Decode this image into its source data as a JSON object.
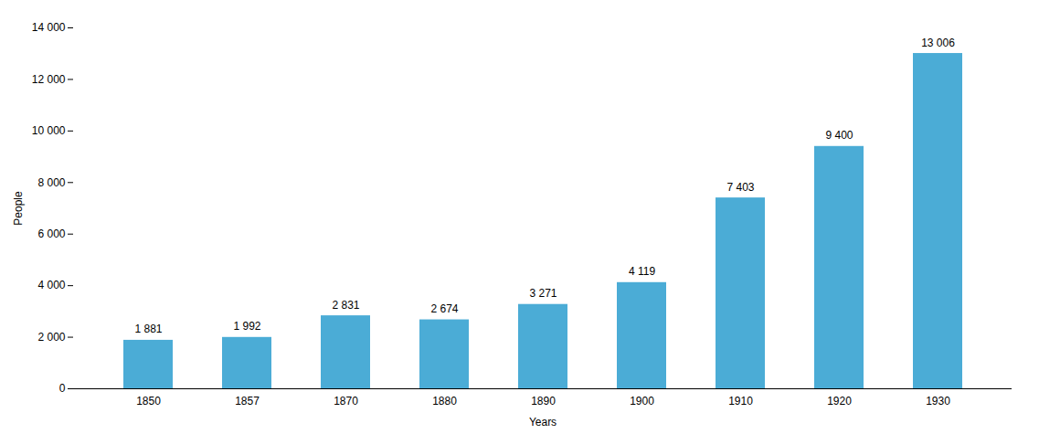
{
  "chart_data": {
    "type": "bar",
    "categories": [
      "1850",
      "1857",
      "1870",
      "1880",
      "1890",
      "1900",
      "1910",
      "1920",
      "1930"
    ],
    "values": [
      1881,
      1992,
      2831,
      2674,
      3271,
      4119,
      7403,
      9400,
      13006
    ],
    "value_labels": [
      "1 881",
      "1 992",
      "2 831",
      "2 674",
      "3 271",
      "4 119",
      "7 403",
      "9 400",
      "13 006"
    ],
    "data_labels": true,
    "color": "#4BACD6",
    "xlabel": "Years",
    "ylabel": "People",
    "ylim": [
      0,
      14000
    ],
    "yticks": [
      0,
      {
        "value": 2000,
        "label": "2 000"
      },
      {
        "value": 4000,
        "label": "4 000"
      },
      {
        "value": 6000,
        "label": "6 000"
      },
      {
        "value": 8000,
        "label": "8 000"
      },
      {
        "value": 10000,
        "label": "10 000"
      },
      {
        "value": 12000,
        "label": "12 000"
      },
      {
        "value": 14000,
        "label": "14 000"
      }
    ],
    "grid": false
  }
}
